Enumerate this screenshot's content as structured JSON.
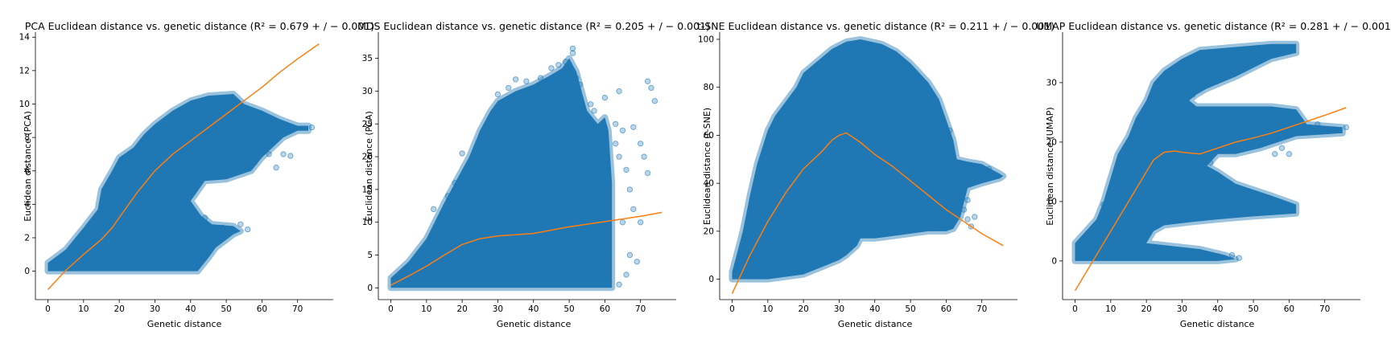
{
  "colors": {
    "points": "#1f77b4",
    "fit": "#ff7f0e",
    "axis": "#000000"
  },
  "chart_data": [
    {
      "type": "scatter",
      "title": "PCA Euclidean distance vs. genetic distance ($R^2 = 0.679 +/- 0.001$)",
      "title_display": "PCA Euclidean distance vs. genetic distance (R² = 0.679 + / − 0.001)",
      "xlabel": "Genetic distance",
      "ylabel": "Euclidean distance (PCA)",
      "xlim": [
        -3.5,
        80.0
      ],
      "ylim": [
        -1.7,
        14.3
      ],
      "xticks": [
        0,
        10,
        20,
        30,
        40,
        50,
        60,
        70
      ],
      "yticks": [
        0,
        2,
        4,
        6,
        8,
        10,
        12,
        14
      ],
      "grid": false,
      "point_cloud": {
        "upper": [
          [
            0,
            0.5
          ],
          [
            5,
            1.3
          ],
          [
            10,
            2.6
          ],
          [
            14,
            3.7
          ],
          [
            15,
            4.9
          ],
          [
            18,
            6
          ],
          [
            20,
            6.8
          ],
          [
            24,
            7.4
          ],
          [
            27,
            8.2
          ],
          [
            30,
            8.8
          ],
          [
            35,
            9.6
          ],
          [
            40,
            10.2
          ],
          [
            45,
            10.5
          ],
          [
            52,
            10.6
          ],
          [
            55,
            10
          ],
          [
            60,
            9.6
          ],
          [
            65,
            9.1
          ],
          [
            70,
            8.7
          ],
          [
            73,
            8.7
          ]
        ],
        "lower": [
          [
            73,
            8.4
          ],
          [
            70,
            8.4
          ],
          [
            66,
            8
          ],
          [
            62,
            7.2
          ],
          [
            60,
            6.8
          ],
          [
            57,
            6
          ],
          [
            50,
            5.5
          ],
          [
            44,
            5.4
          ],
          [
            40,
            4.2
          ],
          [
            43,
            3.3
          ],
          [
            46,
            2.8
          ],
          [
            52,
            2.7
          ],
          [
            54,
            2.4
          ],
          [
            52,
            2.2
          ],
          [
            47,
            1.4
          ],
          [
            45,
            0.8
          ],
          [
            42,
            0
          ],
          [
            0,
            0
          ]
        ],
        "outliers": [
          [
            49,
            2.6
          ],
          [
            54,
            2.8
          ],
          [
            56,
            2.5
          ],
          [
            58,
            6.5
          ],
          [
            60,
            7.2
          ],
          [
            62,
            7
          ],
          [
            64,
            6.2
          ],
          [
            66,
            7
          ],
          [
            68,
            6.9
          ],
          [
            46,
            1.8
          ],
          [
            74,
            8.6
          ],
          [
            38,
            3.5
          ],
          [
            44,
            3.2
          ],
          [
            50,
            2.1
          ]
        ]
      },
      "fit": {
        "x": [
          0,
          5,
          10,
          15,
          18,
          20,
          25,
          30,
          35,
          40,
          45,
          50,
          55,
          60,
          65,
          70,
          76
        ],
        "y": [
          -1.1,
          0.05,
          1.0,
          1.9,
          2.6,
          3.2,
          4.7,
          6.0,
          7.0,
          7.8,
          8.6,
          9.4,
          10.2,
          11.0,
          11.9,
          12.7,
          13.6
        ]
      }
    },
    {
      "type": "scatter",
      "title": "MDS Euclidean distance vs. genetic distance ($R^2 = 0.205 +/- 0.001$)",
      "title_display": "MDS Euclidean distance vs. genetic distance (R² = 0.205 + / − 0.001)",
      "xlabel": "Genetic distance",
      "ylabel": "Euclidean distance (PCA)",
      "xlim": [
        -3.5,
        80.0
      ],
      "ylim": [
        -1.8,
        39.0
      ],
      "xticks": [
        0,
        10,
        20,
        30,
        40,
        50,
        60,
        70
      ],
      "yticks": [
        0,
        5,
        10,
        15,
        20,
        25,
        30,
        35
      ],
      "grid": false,
      "point_cloud": {
        "upper": [
          [
            0,
            1.5
          ],
          [
            5,
            4
          ],
          [
            10,
            7.5
          ],
          [
            15,
            13
          ],
          [
            20,
            18
          ],
          [
            22,
            20
          ],
          [
            25,
            24
          ],
          [
            28,
            27
          ],
          [
            30,
            28.5
          ],
          [
            35,
            30
          ],
          [
            40,
            31
          ],
          [
            45,
            32.5
          ],
          [
            48,
            33.5
          ],
          [
            50,
            35
          ],
          [
            52,
            33
          ],
          [
            55,
            27
          ],
          [
            58,
            25
          ],
          [
            60,
            26
          ],
          [
            61,
            24
          ],
          [
            62,
            16
          ],
          [
            62,
            0
          ]
        ],
        "lower": [
          [
            62,
            0
          ],
          [
            0,
            0
          ]
        ],
        "outliers": [
          [
            51,
            36.5
          ],
          [
            51,
            35.8
          ],
          [
            49,
            34.5
          ],
          [
            50,
            33.2
          ],
          [
            52,
            32
          ],
          [
            53,
            31
          ],
          [
            33,
            30.5
          ],
          [
            35,
            31.8
          ],
          [
            30,
            29.5
          ],
          [
            60,
            29
          ],
          [
            64,
            30
          ],
          [
            72,
            31.5
          ],
          [
            73,
            30.5
          ],
          [
            74,
            28.5
          ],
          [
            63,
            25
          ],
          [
            65,
            24
          ],
          [
            68,
            24.5
          ],
          [
            70,
            22
          ],
          [
            71,
            20
          ],
          [
            64,
            20
          ],
          [
            66,
            18
          ],
          [
            67,
            15
          ],
          [
            68,
            12
          ],
          [
            70,
            10
          ],
          [
            65,
            10
          ],
          [
            67,
            5
          ],
          [
            69,
            4
          ],
          [
            66,
            2
          ],
          [
            64,
            0.5
          ],
          [
            72,
            17.5
          ],
          [
            12,
            12
          ],
          [
            16,
            14
          ],
          [
            18,
            16
          ],
          [
            20,
            20.5
          ],
          [
            63,
            22
          ],
          [
            56,
            28
          ],
          [
            57,
            27
          ],
          [
            47,
            34
          ],
          [
            45,
            33.5
          ],
          [
            42,
            32
          ],
          [
            38,
            31.5
          ]
        ]
      },
      "fit": {
        "x": [
          0,
          5,
          10,
          15,
          20,
          25,
          30,
          35,
          40,
          45,
          50,
          55,
          60,
          65,
          70,
          76
        ],
        "y": [
          0.4,
          1.8,
          3.3,
          5.0,
          6.6,
          7.5,
          7.9,
          8.1,
          8.3,
          8.8,
          9.3,
          9.7,
          10.1,
          10.5,
          10.9,
          11.5
        ]
      }
    },
    {
      "type": "scatter",
      "title": "t-SNE Euclidean distance vs. genetic distance ($R^2 = 0.211 +/- 0.001$)",
      "title_display": "t-SNE Euclidean distance vs. genetic distance (R² = 0.211 + / − 0.001)",
      "xlabel": "Genetic distance",
      "ylabel": "Euclidean distance (t-SNE)",
      "xlim": [
        -3.5,
        80.0
      ],
      "ylim": [
        -8.5,
        103.0
      ],
      "xticks": [
        0,
        10,
        20,
        30,
        40,
        50,
        60,
        70
      ],
      "yticks": [
        0,
        20,
        40,
        60,
        80,
        100
      ],
      "grid": false,
      "point_cloud": {
        "upper": [
          [
            0,
            3
          ],
          [
            3,
            20
          ],
          [
            5,
            35
          ],
          [
            7,
            48
          ],
          [
            10,
            62
          ],
          [
            12,
            68
          ],
          [
            15,
            74
          ],
          [
            18,
            80
          ],
          [
            20,
            86
          ],
          [
            24,
            91
          ],
          [
            28,
            96
          ],
          [
            32,
            99
          ],
          [
            36,
            100
          ],
          [
            42,
            98
          ],
          [
            46,
            95
          ],
          [
            50,
            90
          ],
          [
            55,
            82
          ],
          [
            58,
            75
          ],
          [
            62,
            58
          ],
          [
            63,
            50
          ],
          [
            66,
            49
          ],
          [
            70,
            48
          ],
          [
            75,
            44
          ],
          [
            76,
            43
          ]
        ],
        "lower": [
          [
            75,
            42
          ],
          [
            70,
            40
          ],
          [
            66,
            38
          ],
          [
            65,
            32
          ],
          [
            64,
            26
          ],
          [
            62,
            21
          ],
          [
            60,
            20
          ],
          [
            55,
            20
          ],
          [
            50,
            19
          ],
          [
            45,
            18
          ],
          [
            40,
            17
          ],
          [
            36,
            17
          ],
          [
            35,
            14
          ],
          [
            32,
            10
          ],
          [
            30,
            8
          ],
          [
            25,
            5
          ],
          [
            20,
            2
          ],
          [
            15,
            1
          ],
          [
            10,
            0
          ],
          [
            0,
            0
          ]
        ],
        "outliers": [
          [
            65,
            29
          ],
          [
            66,
            25
          ],
          [
            67,
            22
          ],
          [
            68,
            26
          ],
          [
            66,
            33
          ],
          [
            73,
            43
          ],
          [
            72,
            46
          ],
          [
            60,
            30
          ],
          [
            58,
            70
          ],
          [
            61,
            62
          ]
        ]
      },
      "fit": {
        "x": [
          0,
          5,
          10,
          15,
          20,
          25,
          28,
          30,
          32,
          34,
          36,
          40,
          45,
          50,
          55,
          60,
          65,
          70,
          76
        ],
        "y": [
          -6,
          10,
          24,
          36,
          46,
          53,
          58,
          60,
          61,
          59,
          57,
          52,
          47,
          41,
          35,
          29,
          24,
          19,
          14
        ]
      }
    },
    {
      "type": "scatter",
      "title": "UMAP Euclidean distance vs. genetic distance ($R^2 = 0.281 +/- 0.001$)",
      "title_display": "UMAP Euclidean distance vs. genetic distance (R² = 0.281 + / − 0.001)",
      "xlabel": "Genetic distance",
      "ylabel": "Euclidean distance (UMAP)",
      "xlim": [
        -3.5,
        80.0
      ],
      "ylim": [
        -6.5,
        38.5
      ],
      "xticks": [
        0,
        10,
        20,
        30,
        40,
        50,
        60,
        70
      ],
      "yticks": [
        0,
        10,
        20,
        30
      ],
      "grid": false,
      "point_cloud": {
        "upper": [
          [
            0,
            3
          ],
          [
            3,
            5
          ],
          [
            6,
            7
          ],
          [
            8,
            10
          ],
          [
            10,
            14
          ],
          [
            12,
            18
          ],
          [
            15,
            21
          ],
          [
            17,
            24
          ],
          [
            20,
            27
          ],
          [
            22,
            30
          ],
          [
            25,
            32
          ],
          [
            30,
            34
          ],
          [
            35,
            35.5
          ],
          [
            45,
            36
          ],
          [
            55,
            36.5
          ],
          [
            62,
            36.5
          ],
          [
            62,
            35
          ],
          [
            55,
            34
          ],
          [
            45,
            31
          ],
          [
            37,
            29
          ],
          [
            34,
            28
          ],
          [
            32,
            27
          ],
          [
            34,
            26
          ],
          [
            40,
            26
          ],
          [
            55,
            26
          ],
          [
            62,
            25.5
          ],
          [
            65,
            23
          ],
          [
            75,
            22.5
          ],
          [
            75,
            21.5
          ],
          [
            62,
            21
          ],
          [
            52,
            19
          ],
          [
            45,
            18
          ],
          [
            40,
            18
          ],
          [
            37,
            16
          ],
          [
            40,
            15
          ],
          [
            45,
            13
          ],
          [
            55,
            11
          ],
          [
            62,
            9.5
          ],
          [
            62,
            8
          ],
          [
            50,
            7.5
          ],
          [
            40,
            7
          ],
          [
            32,
            6.5
          ],
          [
            25,
            6
          ],
          [
            22,
            5
          ],
          [
            20,
            3
          ],
          [
            35,
            2
          ],
          [
            42,
            1
          ],
          [
            45,
            0.3
          ],
          [
            40,
            0
          ],
          [
            0,
            0
          ]
        ],
        "lower": [
          [
            0,
            0
          ]
        ],
        "outliers": [
          [
            8,
            9.5
          ],
          [
            12,
            12
          ],
          [
            14,
            13
          ],
          [
            44,
            1
          ],
          [
            46,
            0.5
          ],
          [
            30,
            25
          ],
          [
            33,
            28
          ],
          [
            38,
            16.5
          ],
          [
            56,
            18
          ],
          [
            58,
            19
          ],
          [
            60,
            18
          ],
          [
            64,
            22
          ],
          [
            66,
            22.5
          ],
          [
            68,
            23
          ],
          [
            73,
            22
          ],
          [
            76,
            22.5
          ],
          [
            48,
            20.5
          ],
          [
            52,
            21
          ],
          [
            44,
            19.5
          ],
          [
            41,
            20
          ]
        ]
      },
      "fit": {
        "x": [
          0,
          5,
          10,
          15,
          20,
          22,
          25,
          28,
          30,
          35,
          40,
          45,
          50,
          55,
          60,
          65,
          70,
          76
        ],
        "y": [
          -5,
          0,
          5,
          10,
          15,
          17,
          18.3,
          18.5,
          18.3,
          18,
          19,
          20,
          20.7,
          21.5,
          22.5,
          23.5,
          24.5,
          25.8
        ]
      }
    }
  ]
}
